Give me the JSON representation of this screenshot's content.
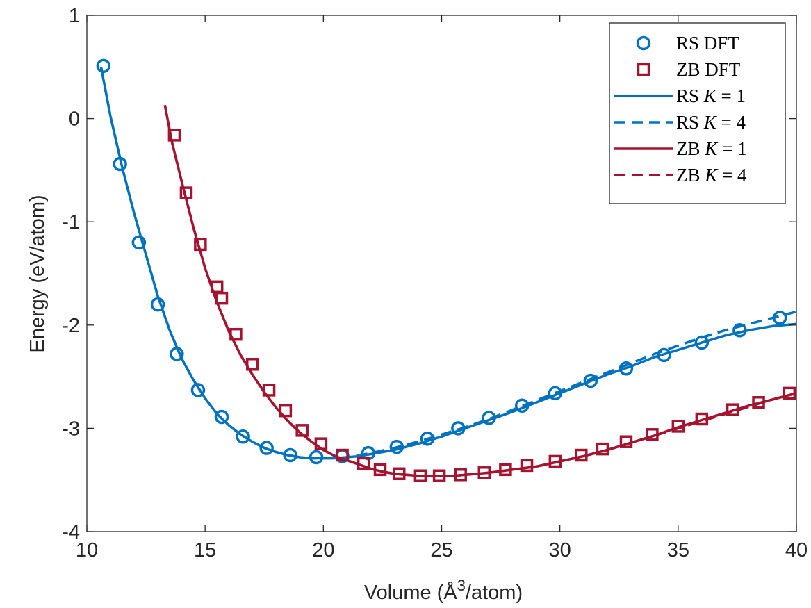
{
  "chart_data": {
    "type": "line",
    "title": "",
    "xlabel": "Volume (Å",
    "xlabel_sup": "3",
    "xlabel_tail": "/atom)",
    "ylabel": "Energy (eV/atom)",
    "xlim": [
      10,
      40
    ],
    "ylim": [
      -4,
      1
    ],
    "xticks": [
      10,
      15,
      20,
      25,
      30,
      35,
      40
    ],
    "yticks": [
      -4,
      -3,
      -2,
      -1,
      0,
      1
    ],
    "legend_position": "top-right",
    "colors": {
      "rs": "#0072BD",
      "zb": "#A2142F"
    },
    "series": [
      {
        "name": "RS DFT",
        "kind": "markers",
        "marker": "circle",
        "color": "#0072BD",
        "x": [
          10.7,
          11.4,
          12.2,
          13.0,
          13.8,
          14.7,
          15.7,
          16.6,
          17.6,
          18.6,
          19.7,
          20.8,
          21.9,
          23.1,
          24.4,
          25.7,
          27.0,
          28.4,
          29.8,
          31.3,
          32.8,
          34.4,
          36.0,
          37.6,
          39.3
        ],
        "y": [
          0.51,
          -0.44,
          -1.2,
          -1.8,
          -2.28,
          -2.63,
          -2.89,
          -3.08,
          -3.19,
          -3.26,
          -3.28,
          -3.27,
          -3.24,
          -3.18,
          -3.1,
          -3.0,
          -2.9,
          -2.78,
          -2.66,
          -2.54,
          -2.42,
          -2.29,
          -2.17,
          -2.05,
          -1.93
        ]
      },
      {
        "name": "ZB DFT",
        "kind": "markers",
        "marker": "square",
        "color": "#A2142F",
        "x": [
          13.7,
          14.2,
          14.8,
          15.5,
          15.7,
          16.3,
          17.0,
          17.7,
          18.4,
          19.1,
          19.9,
          20.8,
          21.7,
          22.4,
          23.2,
          24.1,
          24.9,
          25.8,
          26.8,
          27.7,
          28.6,
          29.8,
          30.9,
          31.8,
          32.8,
          33.9,
          35.0,
          36.0,
          37.3,
          38.4,
          39.7
        ],
        "y": [
          -0.16,
          -0.72,
          -1.22,
          -1.63,
          -1.74,
          -2.09,
          -2.38,
          -2.63,
          -2.83,
          -3.02,
          -3.15,
          -3.26,
          -3.34,
          -3.4,
          -3.44,
          -3.46,
          -3.46,
          -3.45,
          -3.43,
          -3.4,
          -3.36,
          -3.32,
          -3.26,
          -3.2,
          -3.13,
          -3.06,
          -2.98,
          -2.91,
          -2.82,
          -2.75,
          -2.66
        ]
      },
      {
        "name": "RS K = 1",
        "label_prefix": "RS ",
        "label_var": "K",
        "label_suffix": " = 1",
        "kind": "line",
        "style": "solid",
        "color": "#0072BD",
        "x": [
          10.6,
          11.0,
          11.5,
          12.0,
          12.5,
          13.0,
          13.5,
          14.0,
          14.5,
          15.0,
          15.5,
          16.0,
          16.5,
          17.0,
          17.5,
          18.0,
          18.5,
          19.0,
          19.5,
          20.0,
          20.5,
          21.0,
          21.5,
          22.0,
          23.0,
          24.0,
          25.0,
          26.0,
          27.0,
          28.0,
          29.0,
          30.0,
          31.0,
          32.0,
          33.0,
          34.0,
          35.0,
          36.0,
          37.0,
          38.0,
          39.0,
          40.0
        ],
        "y": [
          0.5,
          0.02,
          -0.48,
          -0.92,
          -1.32,
          -1.72,
          -2.05,
          -2.32,
          -2.53,
          -2.71,
          -2.86,
          -2.97,
          -3.06,
          -3.13,
          -3.19,
          -3.23,
          -3.26,
          -3.28,
          -3.29,
          -3.29,
          -3.29,
          -3.28,
          -3.27,
          -3.25,
          -3.21,
          -3.15,
          -3.08,
          -3.0,
          -2.92,
          -2.84,
          -2.75,
          -2.66,
          -2.57,
          -2.48,
          -2.4,
          -2.31,
          -2.24,
          -2.17,
          -2.1,
          -2.05,
          -2.01,
          -1.99
        ]
      },
      {
        "name": "RS K = 4",
        "label_prefix": "RS ",
        "label_var": "K",
        "label_suffix": " = 4",
        "kind": "line",
        "style": "dashed",
        "color": "#0072BD",
        "x": [
          10.6,
          11.0,
          11.5,
          12.0,
          12.5,
          13.0,
          13.5,
          14.0,
          14.5,
          15.0,
          15.5,
          16.0,
          16.5,
          17.0,
          17.5,
          18.0,
          18.5,
          19.0,
          19.5,
          20.0,
          20.5,
          21.0,
          21.5,
          22.0,
          23.0,
          24.0,
          25.0,
          26.0,
          27.0,
          28.0,
          29.0,
          30.0,
          31.0,
          32.0,
          33.0,
          34.0,
          35.0,
          36.0,
          37.0,
          38.0,
          39.0,
          40.0
        ],
        "y": [
          0.5,
          0.02,
          -0.48,
          -0.92,
          -1.32,
          -1.72,
          -2.05,
          -2.32,
          -2.53,
          -2.71,
          -2.86,
          -2.97,
          -3.06,
          -3.13,
          -3.19,
          -3.23,
          -3.26,
          -3.28,
          -3.29,
          -3.29,
          -3.29,
          -3.28,
          -3.26,
          -3.24,
          -3.19,
          -3.13,
          -3.06,
          -2.99,
          -2.91,
          -2.82,
          -2.73,
          -2.64,
          -2.55,
          -2.46,
          -2.37,
          -2.28,
          -2.2,
          -2.12,
          -2.05,
          -1.99,
          -1.93,
          -1.87
        ]
      },
      {
        "name": "ZB K = 1",
        "label_prefix": "ZB ",
        "label_var": "K",
        "label_suffix": " = 1",
        "kind": "line",
        "style": "solid",
        "color": "#A2142F",
        "x": [
          13.3,
          13.6,
          14.0,
          14.5,
          15.0,
          15.5,
          16.0,
          16.5,
          17.0,
          17.5,
          18.0,
          18.5,
          19.0,
          19.5,
          20.0,
          20.5,
          21.0,
          21.5,
          22.0,
          22.5,
          23.0,
          23.5,
          24.0,
          24.5,
          25.0,
          25.5,
          26.0,
          27.0,
          28.0,
          29.0,
          30.0,
          31.0,
          32.0,
          33.0,
          34.0,
          35.0,
          36.0,
          37.0,
          38.0,
          39.0,
          40.0
        ],
        "y": [
          0.13,
          -0.23,
          -0.6,
          -1.05,
          -1.45,
          -1.78,
          -2.06,
          -2.29,
          -2.48,
          -2.65,
          -2.8,
          -2.93,
          -3.04,
          -3.13,
          -3.21,
          -3.27,
          -3.31,
          -3.35,
          -3.39,
          -3.42,
          -3.44,
          -3.45,
          -3.46,
          -3.46,
          -3.46,
          -3.46,
          -3.45,
          -3.43,
          -3.4,
          -3.37,
          -3.32,
          -3.27,
          -3.21,
          -3.14,
          -3.07,
          -2.99,
          -2.92,
          -2.85,
          -2.78,
          -2.72,
          -2.66
        ]
      },
      {
        "name": "ZB K = 4",
        "label_prefix": "ZB ",
        "label_var": "K",
        "label_suffix": " = 4",
        "kind": "line",
        "style": "dashed",
        "color": "#A2142F",
        "x": [
          13.3,
          13.6,
          14.0,
          14.5,
          15.0,
          15.5,
          16.0,
          16.5,
          17.0,
          17.5,
          18.0,
          18.5,
          19.0,
          19.5,
          20.0,
          20.5,
          21.0,
          21.5,
          22.0,
          22.5,
          23.0,
          23.5,
          24.0,
          24.5,
          25.0,
          25.5,
          26.0,
          27.0,
          28.0,
          29.0,
          30.0,
          31.0,
          32.0,
          33.0,
          34.0,
          35.0,
          36.0,
          37.0,
          38.0,
          39.0,
          40.0
        ],
        "y": [
          0.13,
          -0.23,
          -0.6,
          -1.05,
          -1.45,
          -1.78,
          -2.06,
          -2.29,
          -2.48,
          -2.65,
          -2.8,
          -2.93,
          -3.04,
          -3.13,
          -3.21,
          -3.27,
          -3.31,
          -3.35,
          -3.39,
          -3.42,
          -3.44,
          -3.45,
          -3.46,
          -3.46,
          -3.46,
          -3.46,
          -3.45,
          -3.43,
          -3.4,
          -3.37,
          -3.32,
          -3.27,
          -3.21,
          -3.14,
          -3.07,
          -3.0,
          -2.93,
          -2.86,
          -2.79,
          -2.72,
          -2.66
        ]
      }
    ]
  }
}
